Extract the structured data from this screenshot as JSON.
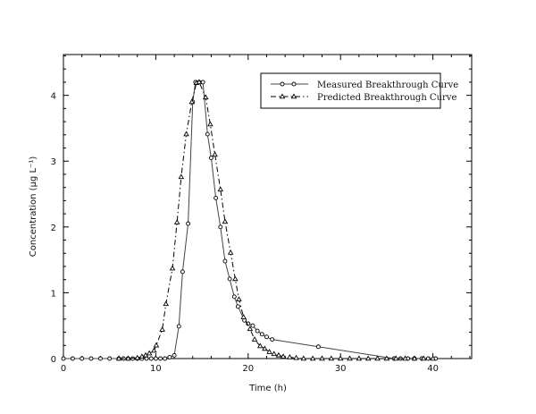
{
  "chart_data": {
    "type": "line",
    "title": "",
    "xlabel": "Time (h)",
    "ylabel": "Concentration (μg L⁻¹)",
    "xlim": [
      0,
      44.2
    ],
    "ylim": [
      0,
      4.62
    ],
    "xticks": [
      0,
      10,
      20,
      30,
      40
    ],
    "xtick_labels": [
      "0",
      "10",
      "20",
      "30",
      "40"
    ],
    "xminor_step": 2,
    "yticks": [
      0,
      1,
      2,
      3,
      4
    ],
    "ytick_labels": [
      "0",
      "1",
      "2",
      "3",
      "4"
    ],
    "yminor_step": 0.2,
    "grid": false,
    "legend_position": "upper right",
    "series": [
      {
        "name": "Measured Breakthrough Curve",
        "marker": "circle",
        "line": "solid",
        "x": [
          0,
          1,
          2,
          3,
          4,
          5,
          6,
          6.5,
          7,
          7.5,
          8,
          8.5,
          9,
          9.5,
          10,
          10.5,
          11,
          11.5,
          12,
          12.5,
          12.9,
          13.5,
          14.0,
          14.3,
          14.7,
          15.1,
          15.6,
          16.0,
          16.5,
          17.0,
          17.5,
          18.0,
          18.5,
          18.9,
          19.6,
          20.0,
          20.5,
          21.0,
          21.5,
          22.0,
          22.6,
          27.6,
          35.8,
          36.5,
          37.3,
          38.0,
          38.8,
          39.5,
          40.3
        ],
        "y": [
          0,
          0,
          0,
          0,
          0,
          0,
          0,
          0,
          0,
          0,
          0,
          0,
          0,
          0,
          0,
          0,
          0,
          0.02,
          0.05,
          0.49,
          1.32,
          2.05,
          3.9,
          4.2,
          4.2,
          4.2,
          3.41,
          3.05,
          2.44,
          2.0,
          1.48,
          1.21,
          0.94,
          0.79,
          0.58,
          0.53,
          0.5,
          0.42,
          0.37,
          0.33,
          0.29,
          0.18,
          0.0,
          0,
          0,
          0,
          0,
          0,
          0
        ]
      },
      {
        "name": "Predicted Breakthrough Curve",
        "marker": "triangle",
        "line": "dashdot",
        "x": [
          6,
          7,
          8,
          8.5,
          8.9,
          9.3,
          9.8,
          10.05,
          10.7,
          11.1,
          11.8,
          12.3,
          12.75,
          13.3,
          13.9,
          14.4,
          14.7,
          15.4,
          15.9,
          16.4,
          17.0,
          17.5,
          18.1,
          18.6,
          19.0,
          19.5,
          20.2,
          20.7,
          21.3,
          21.8,
          22.3,
          22.8,
          23.3,
          23.8,
          24.5,
          25.2,
          26,
          27,
          28,
          29,
          30,
          31,
          32,
          33,
          34,
          35,
          36,
          37,
          38,
          39,
          40
        ],
        "y": [
          0,
          0,
          0.01,
          0.03,
          0.05,
          0.08,
          0.12,
          0.2,
          0.44,
          0.83,
          1.37,
          2.07,
          2.76,
          3.41,
          3.9,
          4.19,
          4.2,
          3.97,
          3.56,
          3.1,
          2.57,
          2.08,
          1.61,
          1.21,
          0.9,
          0.63,
          0.45,
          0.29,
          0.19,
          0.15,
          0.1,
          0.07,
          0.05,
          0.03,
          0.02,
          0.01,
          0,
          0,
          0,
          0,
          0,
          0,
          0,
          0,
          0,
          0,
          0,
          0,
          0,
          0,
          0
        ]
      }
    ]
  },
  "legend": {
    "items": [
      {
        "label": "Measured Breakthrough Curve",
        "marker": "circle",
        "line": "solid"
      },
      {
        "label": "Predicted Breakthrough Curve",
        "marker": "triangle",
        "line": "dashdot"
      }
    ]
  },
  "colors": {
    "axis": "#000000",
    "measured_line": "#444444",
    "predicted_line": "#000000",
    "background": "#ffffff"
  }
}
